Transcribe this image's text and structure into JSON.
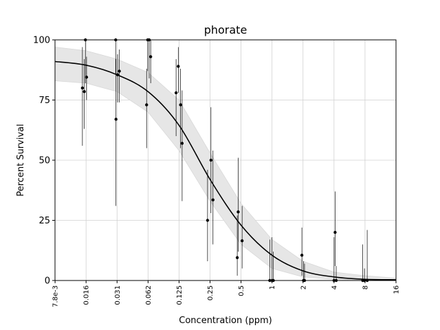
{
  "chart_data": {
    "type": "scatter",
    "title": "phorate",
    "xlabel": "Concentration (ppm)",
    "ylabel": "Percent Survival",
    "xscale": "log2",
    "xlim": [
      0.0078,
      16
    ],
    "ylim": [
      0,
      100
    ],
    "grid": true,
    "x_ticks": [
      {
        "value": 0.0078125,
        "label": "7.8e-3"
      },
      {
        "value": 0.015625,
        "label": "0.016"
      },
      {
        "value": 0.03125,
        "label": "0.031"
      },
      {
        "value": 0.0625,
        "label": "0.062"
      },
      {
        "value": 0.125,
        "label": "0.125"
      },
      {
        "value": 0.25,
        "label": "0.25"
      },
      {
        "value": 0.5,
        "label": "0.5"
      },
      {
        "value": 1,
        "label": "1"
      },
      {
        "value": 2,
        "label": "2"
      },
      {
        "value": 4,
        "label": "4"
      },
      {
        "value": 8,
        "label": "8"
      },
      {
        "value": 16,
        "label": "16"
      }
    ],
    "y_ticks": [
      {
        "value": 0,
        "label": "0"
      },
      {
        "value": 25,
        "label": "25"
      },
      {
        "value": 50,
        "label": "50"
      },
      {
        "value": 75,
        "label": "75"
      },
      {
        "value": 100,
        "label": "100"
      }
    ],
    "points": [
      {
        "x": 0.0144,
        "y": 80,
        "low": 56,
        "high": 97
      },
      {
        "x": 0.015,
        "y": 78.5,
        "low": 63,
        "high": 92
      },
      {
        "x": 0.0154,
        "y": 100,
        "low": 82,
        "high": 100
      },
      {
        "x": 0.0158,
        "y": 84.5,
        "low": 75,
        "high": 93
      },
      {
        "x": 0.0303,
        "y": 100,
        "low": 86,
        "high": 100
      },
      {
        "x": 0.0305,
        "y": 67,
        "low": 31,
        "high": 92
      },
      {
        "x": 0.0316,
        "y": 85.5,
        "low": 74,
        "high": 94
      },
      {
        "x": 0.0329,
        "y": 87,
        "low": 74,
        "high": 96
      },
      {
        "x": 0.0605,
        "y": 73,
        "low": 55,
        "high": 88
      },
      {
        "x": 0.062,
        "y": 100,
        "low": 87,
        "high": 100
      },
      {
        "x": 0.0641,
        "y": 100,
        "low": 84,
        "high": 100
      },
      {
        "x": 0.0663,
        "y": 93,
        "low": 82,
        "high": 100
      },
      {
        "x": 0.117,
        "y": 78,
        "low": 60,
        "high": 92
      },
      {
        "x": 0.1229,
        "y": 89,
        "low": 78,
        "high": 97
      },
      {
        "x": 0.1293,
        "y": 73,
        "low": 55,
        "high": 88
      },
      {
        "x": 0.1339,
        "y": 57,
        "low": 33,
        "high": 79
      },
      {
        "x": 0.2365,
        "y": 25,
        "low": 8,
        "high": 46
      },
      {
        "x": 0.2551,
        "y": 50,
        "low": 28,
        "high": 72
      },
      {
        "x": 0.267,
        "y": 33.5,
        "low": 15,
        "high": 54
      },
      {
        "x": 0.4595,
        "y": 9.5,
        "low": 2,
        "high": 27
      },
      {
        "x": 0.4693,
        "y": 28.5,
        "low": 12,
        "high": 51
      },
      {
        "x": 0.5122,
        "y": 16.5,
        "low": 5,
        "high": 31
      },
      {
        "x": 0.95,
        "y": 0,
        "low": 0,
        "high": 17
      },
      {
        "x": 1.0,
        "y": 0,
        "low": 0,
        "high": 18
      },
      {
        "x": 1.03,
        "y": 0,
        "low": 0,
        "high": 12
      },
      {
        "x": 1.95,
        "y": 10.5,
        "low": 2,
        "high": 22
      },
      {
        "x": 2.02,
        "y": 0,
        "low": 0,
        "high": 8
      },
      {
        "x": 2.07,
        "y": 0,
        "low": 0,
        "high": 7
      },
      {
        "x": 4.1,
        "y": 20,
        "low": 6,
        "high": 37
      },
      {
        "x": 4.0,
        "y": 0,
        "low": 0,
        "high": 18
      },
      {
        "x": 4.2,
        "y": 0,
        "low": 0,
        "high": 6
      },
      {
        "x": 7.6,
        "y": 0,
        "low": 0,
        "high": 15
      },
      {
        "x": 7.9,
        "y": 0,
        "low": 0,
        "high": 5
      },
      {
        "x": 8.4,
        "y": 0,
        "low": 0,
        "high": 21
      }
    ],
    "fit_curve": {
      "x": [
        0.0078,
        0.0156,
        0.03125,
        0.0625,
        0.125,
        0.25,
        0.5,
        1,
        2,
        4,
        8,
        16
      ],
      "y": [
        91,
        89.5,
        85.5,
        78.5,
        64.5,
        42,
        23,
        10.5,
        4,
        1.5,
        0.5,
        0.3
      ]
    },
    "confidence_band": {
      "upper": [
        97,
        95.5,
        92,
        86.5,
        75,
        53,
        32,
        17,
        8,
        3.5,
        2,
        1
      ],
      "lower": [
        83,
        82,
        78.5,
        70,
        54,
        33,
        15,
        5,
        1.5,
        0.5,
        0,
        0
      ]
    }
  }
}
